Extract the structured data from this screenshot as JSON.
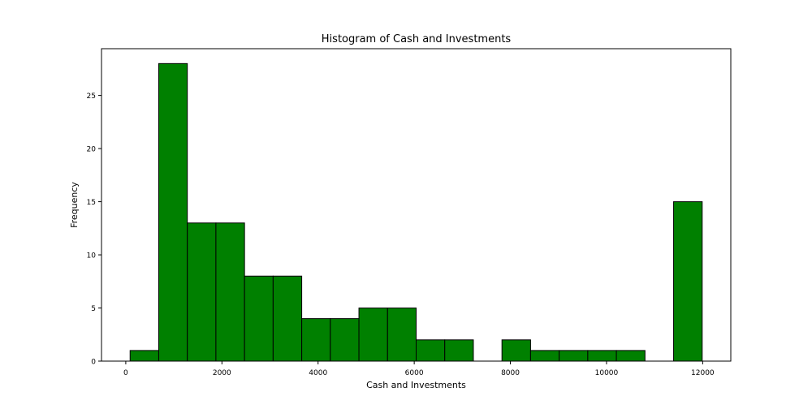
{
  "chart_data": {
    "type": "histogram",
    "title": "Histogram of Cash and Investments",
    "xlabel": "Cash and Investments",
    "ylabel": "Frequency",
    "bins": [
      {
        "x0": 90,
        "x1": 685,
        "count": 1
      },
      {
        "x0": 685,
        "x1": 1280,
        "count": 28
      },
      {
        "x0": 1280,
        "x1": 1875,
        "count": 13
      },
      {
        "x0": 1875,
        "x1": 2470,
        "count": 13
      },
      {
        "x0": 2470,
        "x1": 3065,
        "count": 8
      },
      {
        "x0": 3065,
        "x1": 3660,
        "count": 8
      },
      {
        "x0": 3660,
        "x1": 4255,
        "count": 4
      },
      {
        "x0": 4255,
        "x1": 4850,
        "count": 4
      },
      {
        "x0": 4850,
        "x1": 5445,
        "count": 5
      },
      {
        "x0": 5445,
        "x1": 6040,
        "count": 5
      },
      {
        "x0": 6040,
        "x1": 6635,
        "count": 2
      },
      {
        "x0": 6635,
        "x1": 7230,
        "count": 2
      },
      {
        "x0": 7230,
        "x1": 7825,
        "count": 0
      },
      {
        "x0": 7825,
        "x1": 8420,
        "count": 2
      },
      {
        "x0": 8420,
        "x1": 9015,
        "count": 1
      },
      {
        "x0": 9015,
        "x1": 9610,
        "count": 1
      },
      {
        "x0": 9610,
        "x1": 10205,
        "count": 1
      },
      {
        "x0": 10205,
        "x1": 10800,
        "count": 1
      },
      {
        "x0": 10800,
        "x1": 11395,
        "count": 0
      },
      {
        "x0": 11395,
        "x1": 11990,
        "count": 15
      }
    ],
    "xlim": [
      -505,
      12585
    ],
    "ylim": [
      0,
      29.4
    ],
    "xticks": [
      0,
      2000,
      4000,
      6000,
      8000,
      10000,
      12000
    ],
    "xtick_labels": [
      "0",
      "2000",
      "4000",
      "6000",
      "8000",
      "10000",
      "12000"
    ],
    "yticks": [
      0,
      5,
      10,
      15,
      20,
      25
    ],
    "ytick_labels": [
      "0",
      "5",
      "10",
      "15",
      "20",
      "25"
    ],
    "grid": false,
    "bar_color": "#008000",
    "edge_color": "#000000"
  }
}
